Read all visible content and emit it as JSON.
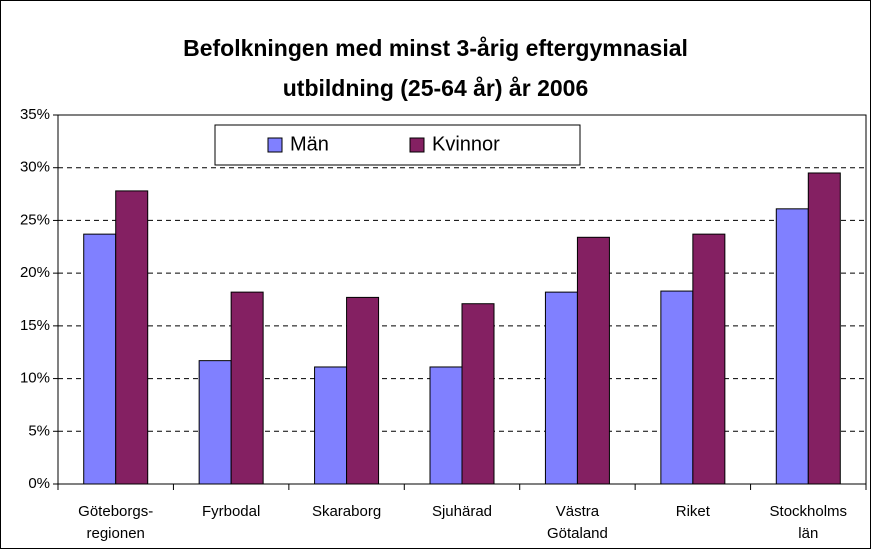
{
  "chart_data": {
    "type": "bar",
    "title": "Befolkningen med minst 3-årig eftergymnasial\nutbildning (25-64 år) år 2006",
    "categories": [
      "Göteborgs-\nregionen",
      "Fyrbodal",
      "Skaraborg",
      "Sjuhärad",
      "Västra\nGötaland",
      "Riket",
      "Stockholms\nlän"
    ],
    "series": [
      {
        "name": "Män",
        "color": "#8080ff",
        "values": [
          23.7,
          11.7,
          11.1,
          11.1,
          18.2,
          18.3,
          26.1
        ]
      },
      {
        "name": "Kvinnor",
        "color": "#842062",
        "values": [
          27.8,
          18.2,
          17.7,
          17.1,
          23.4,
          23.7,
          29.5
        ]
      }
    ],
    "ylim": [
      0,
      35
    ],
    "yticks": [
      {
        "value": 0,
        "label": "0%"
      },
      {
        "value": 5,
        "label": "5%"
      },
      {
        "value": 10,
        "label": "10%"
      },
      {
        "value": 15,
        "label": "15%"
      },
      {
        "value": 20,
        "label": "20%"
      },
      {
        "value": 25,
        "label": "25%"
      },
      {
        "value": 30,
        "label": "30%"
      },
      {
        "value": 35,
        "label": "35%"
      }
    ],
    "grid": true
  }
}
